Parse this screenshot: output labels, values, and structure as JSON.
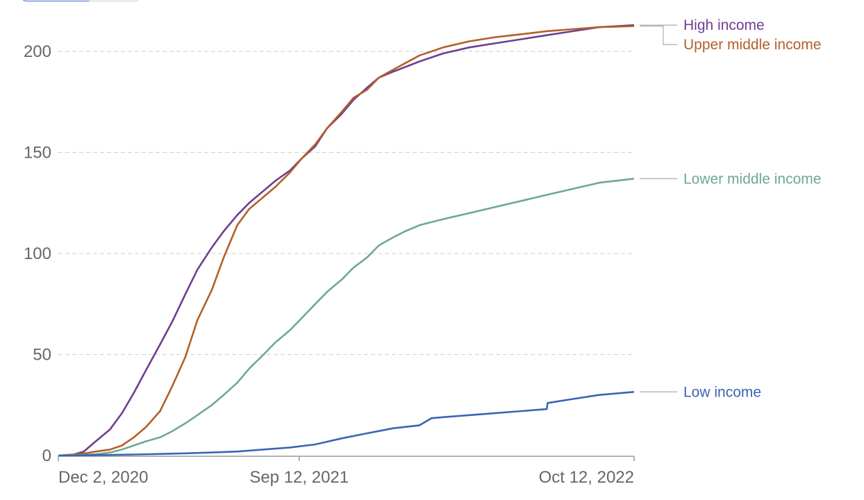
{
  "view_toggle": {
    "active_label": "",
    "inactive_label": ""
  },
  "chart_data": {
    "type": "line",
    "xlabel": "",
    "ylabel": "",
    "x_start": "Dec 2, 2020",
    "x_end": "Oct 12, 2022",
    "x_ticks": [
      {
        "label": "Dec 2, 2020",
        "date": "2020-12-02"
      },
      {
        "label": "Sep 12, 2021",
        "date": "2021-09-12"
      },
      {
        "label": "Oct 12, 2022",
        "date": "2022-10-12"
      }
    ],
    "ylim": [
      0,
      215
    ],
    "y_ticks": [
      0,
      50,
      100,
      150,
      200
    ],
    "grid": true,
    "legend": "right, inline end labels",
    "series": [
      {
        "name": "High income",
        "color": "#6d3e91",
        "points": [
          [
            "2020-12-02",
            0
          ],
          [
            "2020-12-20",
            0.5
          ],
          [
            "2021-01-01",
            2
          ],
          [
            "2021-01-15",
            7
          ],
          [
            "2021-02-01",
            13
          ],
          [
            "2021-02-15",
            21
          ],
          [
            "2021-03-01",
            31
          ],
          [
            "2021-03-15",
            42
          ],
          [
            "2021-04-01",
            55
          ],
          [
            "2021-04-15",
            66
          ],
          [
            "2021-05-01",
            80
          ],
          [
            "2021-05-15",
            92
          ],
          [
            "2021-06-01",
            103
          ],
          [
            "2021-06-15",
            111
          ],
          [
            "2021-07-01",
            119
          ],
          [
            "2021-07-15",
            125
          ],
          [
            "2021-08-01",
            131
          ],
          [
            "2021-08-15",
            136
          ],
          [
            "2021-09-01",
            141
          ],
          [
            "2021-09-15",
            147
          ],
          [
            "2021-10-01",
            153
          ],
          [
            "2021-10-15",
            162
          ],
          [
            "2021-11-01",
            169
          ],
          [
            "2021-11-15",
            176
          ],
          [
            "2021-12-01",
            182
          ],
          [
            "2021-12-15",
            187
          ],
          [
            "2022-01-01",
            190
          ],
          [
            "2022-02-01",
            195
          ],
          [
            "2022-03-01",
            199
          ],
          [
            "2022-04-01",
            202
          ],
          [
            "2022-05-01",
            204
          ],
          [
            "2022-06-01",
            206
          ],
          [
            "2022-07-01",
            208
          ],
          [
            "2022-08-01",
            210
          ],
          [
            "2022-09-01",
            212
          ],
          [
            "2022-10-12",
            213
          ]
        ]
      },
      {
        "name": "Upper middle income",
        "color": "#b35f28",
        "points": [
          [
            "2020-12-02",
            0
          ],
          [
            "2020-12-20",
            0.5
          ],
          [
            "2021-01-01",
            1
          ],
          [
            "2021-01-15",
            2
          ],
          [
            "2021-02-01",
            3
          ],
          [
            "2021-02-15",
            5
          ],
          [
            "2021-03-01",
            9
          ],
          [
            "2021-03-15",
            14
          ],
          [
            "2021-04-01",
            22
          ],
          [
            "2021-04-15",
            34
          ],
          [
            "2021-05-01",
            49
          ],
          [
            "2021-05-15",
            67
          ],
          [
            "2021-06-01",
            82
          ],
          [
            "2021-06-15",
            98
          ],
          [
            "2021-07-01",
            114
          ],
          [
            "2021-07-15",
            122
          ],
          [
            "2021-08-01",
            128
          ],
          [
            "2021-08-15",
            133
          ],
          [
            "2021-09-01",
            140
          ],
          [
            "2021-09-15",
            147
          ],
          [
            "2021-10-01",
            154
          ],
          [
            "2021-10-15",
            162
          ],
          [
            "2021-11-01",
            170
          ],
          [
            "2021-11-15",
            177
          ],
          [
            "2021-12-01",
            181
          ],
          [
            "2021-12-15",
            187
          ],
          [
            "2022-01-01",
            191
          ],
          [
            "2022-02-01",
            198
          ],
          [
            "2022-03-01",
            202
          ],
          [
            "2022-04-01",
            205
          ],
          [
            "2022-05-01",
            207
          ],
          [
            "2022-06-01",
            208.5
          ],
          [
            "2022-07-01",
            210
          ],
          [
            "2022-08-01",
            211
          ],
          [
            "2022-09-01",
            212
          ],
          [
            "2022-10-12",
            212.5
          ]
        ]
      },
      {
        "name": "Lower middle income",
        "color": "#6fa891",
        "points": [
          [
            "2020-12-02",
            0
          ],
          [
            "2021-01-01",
            0.3
          ],
          [
            "2021-01-15",
            0.7
          ],
          [
            "2021-02-01",
            1.5
          ],
          [
            "2021-02-15",
            3
          ],
          [
            "2021-03-01",
            5
          ],
          [
            "2021-03-15",
            7
          ],
          [
            "2021-04-01",
            9
          ],
          [
            "2021-04-15",
            12
          ],
          [
            "2021-05-01",
            16
          ],
          [
            "2021-05-15",
            20
          ],
          [
            "2021-06-01",
            25
          ],
          [
            "2021-06-15",
            30
          ],
          [
            "2021-07-01",
            36
          ],
          [
            "2021-07-15",
            43
          ],
          [
            "2021-08-01",
            50
          ],
          [
            "2021-08-15",
            56
          ],
          [
            "2021-09-01",
            62
          ],
          [
            "2021-09-15",
            68
          ],
          [
            "2021-10-01",
            75
          ],
          [
            "2021-10-15",
            81
          ],
          [
            "2021-11-01",
            87
          ],
          [
            "2021-11-15",
            93
          ],
          [
            "2021-12-01",
            98
          ],
          [
            "2021-12-15",
            104
          ],
          [
            "2022-01-01",
            108
          ],
          [
            "2022-01-15",
            111
          ],
          [
            "2022-02-01",
            114
          ],
          [
            "2022-03-01",
            117
          ],
          [
            "2022-04-01",
            120
          ],
          [
            "2022-05-01",
            123
          ],
          [
            "2022-06-01",
            126
          ],
          [
            "2022-07-01",
            129
          ],
          [
            "2022-08-01",
            132
          ],
          [
            "2022-09-01",
            135
          ],
          [
            "2022-10-12",
            137
          ]
        ]
      },
      {
        "name": "Low income",
        "color": "#3b64b3",
        "points": [
          [
            "2020-12-02",
            0
          ],
          [
            "2021-01-01",
            0.1
          ],
          [
            "2021-02-01",
            0.3
          ],
          [
            "2021-03-01",
            0.5
          ],
          [
            "2021-04-01",
            0.8
          ],
          [
            "2021-05-01",
            1.1
          ],
          [
            "2021-06-01",
            1.5
          ],
          [
            "2021-07-01",
            2
          ],
          [
            "2021-08-01",
            3
          ],
          [
            "2021-09-01",
            4
          ],
          [
            "2021-10-01",
            5.5
          ],
          [
            "2021-11-01",
            8.5
          ],
          [
            "2021-12-01",
            11
          ],
          [
            "2022-01-01",
            13.5
          ],
          [
            "2022-02-01",
            15
          ],
          [
            "2022-02-15",
            18.5
          ],
          [
            "2022-03-01",
            19
          ],
          [
            "2022-04-01",
            20
          ],
          [
            "2022-05-01",
            21
          ],
          [
            "2022-06-01",
            22
          ],
          [
            "2022-07-01",
            23
          ],
          [
            "2022-07-02",
            26
          ],
          [
            "2022-08-01",
            28
          ],
          [
            "2022-09-01",
            30
          ],
          [
            "2022-10-12",
            31.5
          ]
        ]
      }
    ]
  }
}
